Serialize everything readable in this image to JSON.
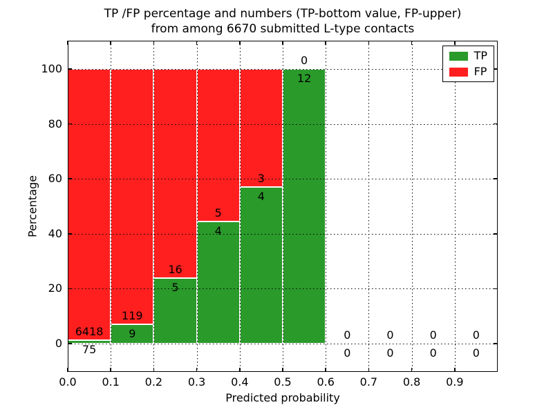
{
  "chart_data": {
    "type": "bar",
    "stacked": true,
    "title_line1": "TP /FP percentage and numbers (TP-bottom value, FP-upper)",
    "title_line2": "from among 6670 submitted L-type contacts",
    "xlabel": "Predicted probability",
    "ylabel": "Percentage",
    "x_tick_labels": [
      "0.0",
      "0.1",
      "0.2",
      "0.3",
      "0.4",
      "0.5",
      "0.6",
      "0.7",
      "0.8",
      "0.9"
    ],
    "y_tick_values": [
      0,
      20,
      40,
      60,
      80,
      100
    ],
    "xlim": [
      0.0,
      1.0
    ],
    "ylim": [
      -10.3,
      110.3
    ],
    "grid": "dotted",
    "bar_value_note": "each bar shows TP+FP stacked to 100%; labels are raw counts (TP bottom, FP upper)",
    "colors": {
      "tp": "#2a9a2a",
      "fp": "#ff1f1f"
    },
    "legend": {
      "position": "upper-right",
      "items": [
        {
          "label": "TP",
          "key": "tp"
        },
        {
          "label": "FP",
          "key": "fp"
        }
      ]
    },
    "bins": [
      {
        "x_start": 0.0,
        "x_end": 0.1,
        "tp": 75,
        "fp": 6418
      },
      {
        "x_start": 0.1,
        "x_end": 0.2,
        "tp": 9,
        "fp": 119
      },
      {
        "x_start": 0.2,
        "x_end": 0.3,
        "tp": 5,
        "fp": 16
      },
      {
        "x_start": 0.3,
        "x_end": 0.4,
        "tp": 4,
        "fp": 5
      },
      {
        "x_start": 0.4,
        "x_end": 0.5,
        "tp": 4,
        "fp": 3
      },
      {
        "x_start": 0.5,
        "x_end": 0.6,
        "tp": 12,
        "fp": 0
      },
      {
        "x_start": 0.6,
        "x_end": 0.7,
        "tp": 0,
        "fp": 0
      },
      {
        "x_start": 0.7,
        "x_end": 0.8,
        "tp": 0,
        "fp": 0
      },
      {
        "x_start": 0.8,
        "x_end": 0.9,
        "tp": 0,
        "fp": 0
      },
      {
        "x_start": 0.9,
        "x_end": 1.0,
        "tp": 0,
        "fp": 0
      }
    ]
  }
}
